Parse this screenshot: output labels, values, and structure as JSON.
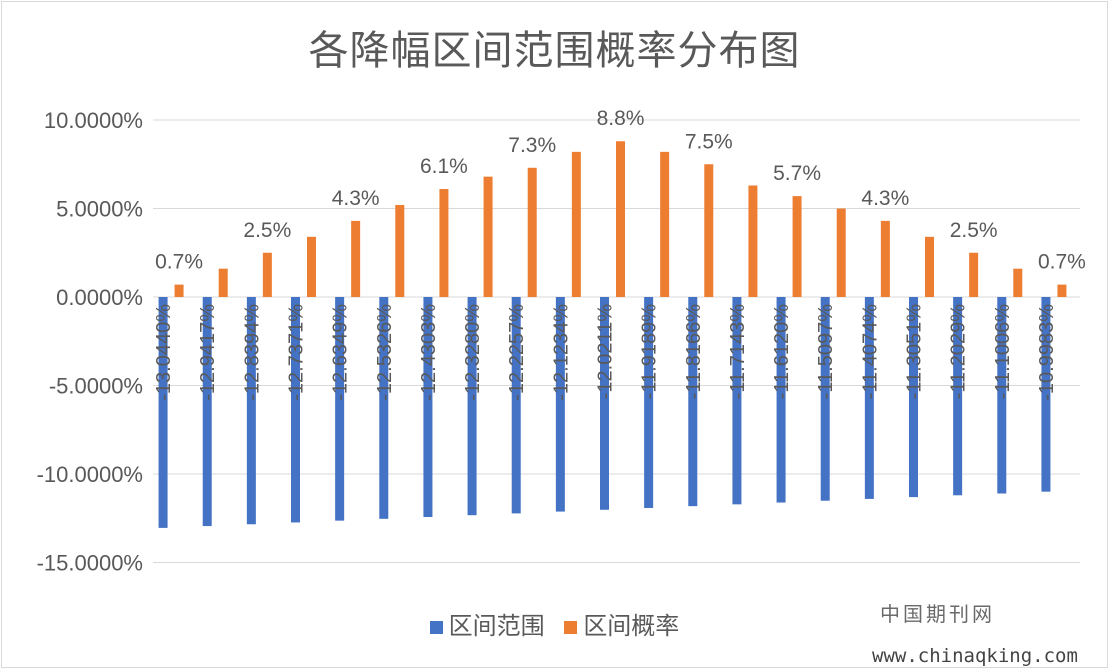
{
  "chart_data": {
    "type": "bar",
    "title": "各降幅区间范围概率分布图",
    "xlabel": "",
    "ylabel": "",
    "ylim": [
      -15,
      10
    ],
    "yticks": [
      10,
      5,
      0,
      -5,
      -10,
      -15
    ],
    "ytick_labels": [
      "10.0000%",
      "5.0000%",
      "0.0000%",
      "-5.0000%",
      "-10.0000%",
      "-15.0000%"
    ],
    "grid": true,
    "legend_position": "bottom",
    "series": [
      {
        "name": "区间范围",
        "color": "#4472c4",
        "values": [
          -13.044,
          -12.9417,
          -12.8394,
          -12.7371,
          -12.6349,
          -12.5326,
          -12.4303,
          -12.328,
          -12.2257,
          -12.1234,
          -12.0211,
          -11.9189,
          -11.8166,
          -11.7143,
          -11.612,
          -11.5097,
          -11.4074,
          -11.3051,
          -11.2029,
          -11.1006,
          -10.9983
        ],
        "labels": [
          "-13.0440%",
          "-12.9417%",
          "-12.8394%",
          "-12.7371%",
          "-12.6349%",
          "-12.5326%",
          "-12.4303%",
          "-12.3280%",
          "-12.2257%",
          "-12.1234%",
          "-12.0211%",
          "-11.9189%",
          "-11.8166%",
          "-11.7143%",
          "-11.6120%",
          "-11.5097%",
          "-11.4074%",
          "-11.3051%",
          "-11.2029%",
          "-11.1006%",
          "-10.9983%"
        ]
      },
      {
        "name": "区间概率",
        "color": "#ed7d31",
        "values": [
          0.7,
          1.6,
          2.5,
          3.4,
          4.3,
          5.2,
          6.1,
          6.8,
          7.3,
          8.2,
          8.8,
          8.2,
          7.5,
          6.3,
          5.7,
          5.0,
          4.3,
          3.4,
          2.5,
          1.6,
          0.7
        ],
        "labels": [
          "0.7%",
          "",
          "2.5%",
          "",
          "4.3%",
          "",
          "6.1%",
          "",
          "7.3%",
          "",
          "8.8%",
          "",
          "7.5%",
          "",
          "5.7%",
          "",
          "4.3%",
          "",
          "2.5%",
          "",
          "0.7%"
        ]
      }
    ]
  },
  "watermark": {
    "name": "中国期刊网",
    "url": "www.chinaqking.com"
  }
}
